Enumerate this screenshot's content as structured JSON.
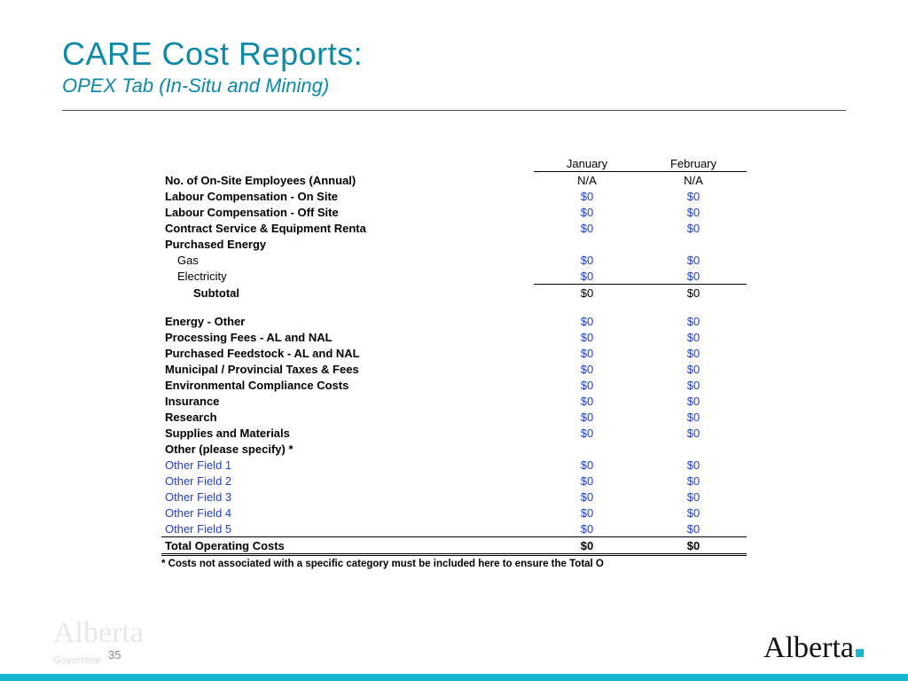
{
  "colors": {
    "title": "#0d8aa8",
    "subtitle": "#0d8aa8",
    "value_input": "#2040d0",
    "value_calc": "#000000",
    "label": "#000000",
    "footer_bar": "#17b7cf",
    "logo_square": "#17b7cf"
  },
  "header": {
    "title": "CARE Cost Reports:",
    "subtitle": "OPEX Tab (In-Situ and Mining)"
  },
  "table": {
    "months": [
      "January",
      "February"
    ],
    "rows": [
      {
        "label": "No. of On-Site  Employees (Annual)",
        "bold": true,
        "jan": "N/A",
        "feb": "N/A",
        "val_style": "calc"
      },
      {
        "label": "Labour Compensation - On Site",
        "bold": true,
        "jan": "$0",
        "feb": "$0",
        "val_style": "input"
      },
      {
        "label": "Labour Compensation - Off Site",
        "bold": true,
        "jan": "$0",
        "feb": "$0",
        "val_style": "input"
      },
      {
        "label": "Contract Service & Equipment Renta",
        "bold": true,
        "jan": "$0",
        "feb": "$0",
        "val_style": "input"
      },
      {
        "label": "Purchased Energy",
        "bold": true,
        "jan": "",
        "feb": "",
        "val_style": "none"
      },
      {
        "label": "Gas",
        "indent": 1,
        "jan": "$0",
        "feb": "$0",
        "val_style": "input"
      },
      {
        "label": "Electricity",
        "indent": 1,
        "jan": "$0",
        "feb": "$0",
        "val_style": "input"
      },
      {
        "label": "Subtotal",
        "bold": true,
        "indent": 2,
        "jan": "$0",
        "feb": "$0",
        "val_style": "calc",
        "row_style": "subtotal"
      },
      {
        "label": "",
        "jan": "",
        "feb": "",
        "val_style": "none",
        "spacer": true
      },
      {
        "label": "Energy - Other",
        "bold": true,
        "jan": "$0",
        "feb": "$0",
        "val_style": "input"
      },
      {
        "label": "Processing Fees - AL and NAL",
        "bold": true,
        "jan": "$0",
        "feb": "$0",
        "val_style": "input"
      },
      {
        "label": "Purchased Feedstock - AL and NAL",
        "bold": true,
        "jan": "$0",
        "feb": "$0",
        "val_style": "input"
      },
      {
        "label": "Municipal / Provincial Taxes & Fees",
        "bold": true,
        "jan": "$0",
        "feb": "$0",
        "val_style": "input"
      },
      {
        "label": "Environmental Compliance Costs",
        "bold": true,
        "jan": "$0",
        "feb": "$0",
        "val_style": "input"
      },
      {
        "label": "Insurance",
        "bold": true,
        "jan": "$0",
        "feb": "$0",
        "val_style": "input"
      },
      {
        "label": "Research",
        "bold": true,
        "jan": "$0",
        "feb": "$0",
        "val_style": "input"
      },
      {
        "label": "Supplies and Materials",
        "bold": true,
        "jan": "$0",
        "feb": "$0",
        "val_style": "input"
      },
      {
        "label": "Other (please specify) *",
        "bold": true,
        "jan": "",
        "feb": "",
        "val_style": "none"
      },
      {
        "label": "Other Field 1",
        "label_style": "input",
        "jan": "$0",
        "feb": "$0",
        "val_style": "input"
      },
      {
        "label": "Other Field 2",
        "label_style": "input",
        "jan": "$0",
        "feb": "$0",
        "val_style": "input"
      },
      {
        "label": "Other Field 3",
        "label_style": "input",
        "jan": "$0",
        "feb": "$0",
        "val_style": "input"
      },
      {
        "label": "Other Field 4",
        "label_style": "input",
        "jan": "$0",
        "feb": "$0",
        "val_style": "input"
      },
      {
        "label": "Other Field 5",
        "label_style": "input",
        "jan": "$0",
        "feb": "$0",
        "val_style": "input"
      },
      {
        "label": "Total Operating Costs",
        "bold": true,
        "jan": "$0",
        "feb": "$0",
        "val_style": "calc",
        "row_style": "total"
      }
    ],
    "footnote": "* Costs not associated with a specific category must be included here to ensure the Total O"
  },
  "footer": {
    "page_number": "35",
    "left_logo_text": "Alberta",
    "left_logo_sub": "Governme",
    "right_logo_text": "Alberta"
  }
}
